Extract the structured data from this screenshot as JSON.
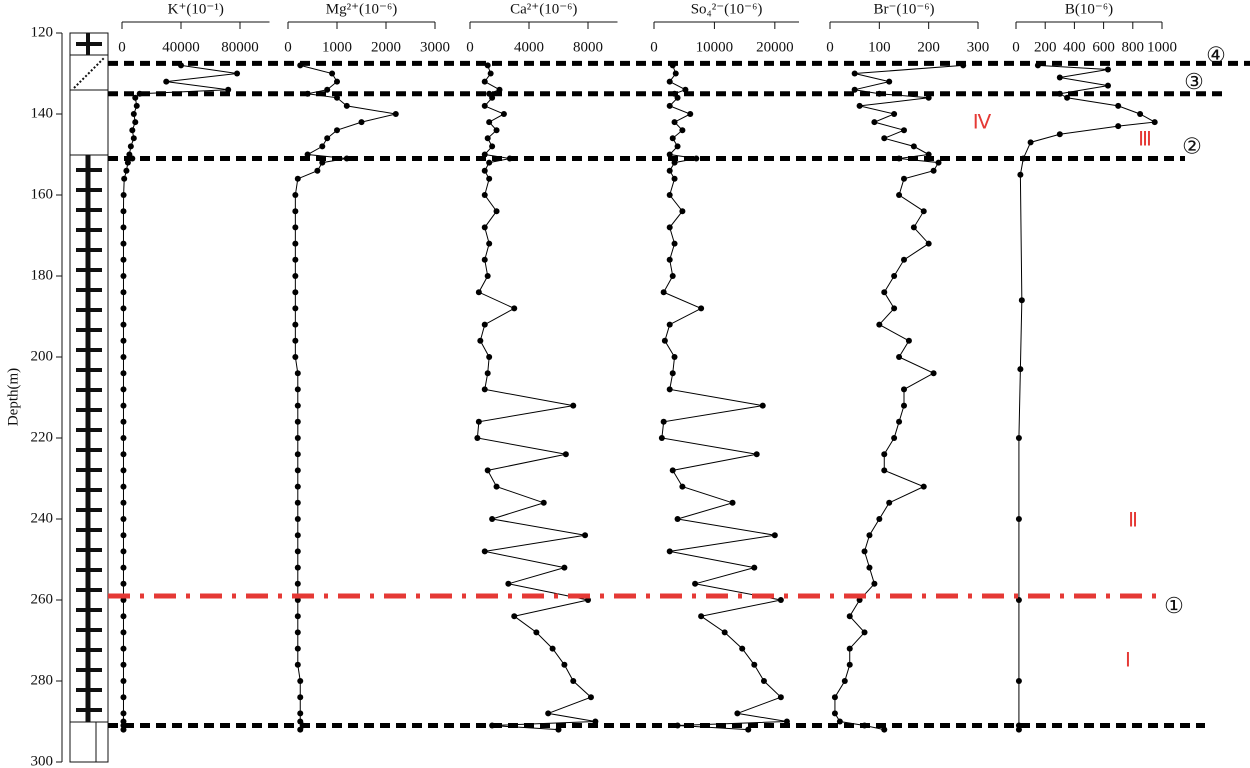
{
  "depth_axis": {
    "label": "Depth(m)",
    "ylim": [
      120,
      300
    ],
    "yticks": [
      120,
      140,
      160,
      180,
      200,
      220,
      240,
      260,
      280,
      300
    ],
    "depths": [
      128,
      130,
      132,
      134,
      135,
      136,
      138,
      140,
      142,
      144,
      146,
      148,
      150,
      151,
      152,
      154,
      156,
      160,
      164,
      168,
      172,
      176,
      180,
      184,
      188,
      192,
      196,
      200,
      204,
      208,
      212,
      216,
      220,
      224,
      228,
      232,
      236,
      240,
      244,
      248,
      252,
      256,
      260,
      264,
      268,
      272,
      276,
      280,
      284,
      288,
      290,
      291,
      292
    ]
  },
  "boundaries": [
    {
      "depth": 127.5,
      "label": "④",
      "color": "#000000"
    },
    {
      "depth": 135,
      "label": "③",
      "color": "#000000"
    },
    {
      "depth": 151,
      "label": "②",
      "color": "#000000"
    },
    {
      "depth": 259,
      "label": "①",
      "color": "#e53935"
    },
    {
      "depth": 291,
      "color": "#000000"
    }
  ],
  "zones": [
    "Ⅳ",
    "Ⅲ",
    "Ⅱ",
    "Ⅰ"
  ],
  "chart_data": [
    {
      "type": "line",
      "title": "K⁺(10⁻¹)",
      "color": "#000000",
      "xlim": [
        0,
        100000
      ],
      "xticks": [
        0,
        40000,
        80000
      ],
      "values": [
        40000,
        78000,
        30000,
        72000,
        12000,
        9000,
        10000,
        8000,
        9000,
        7000,
        8000,
        6000,
        5000,
        7000,
        4000,
        3000,
        1500,
        1100,
        1000,
        1000,
        1000,
        1000,
        1000,
        1000,
        1000,
        1000,
        1000,
        1000,
        1000,
        1000,
        1000,
        1000,
        1000,
        1000,
        1000,
        1000,
        1000,
        1000,
        1000,
        1000,
        1000,
        1000,
        1000,
        1000,
        1000,
        1000,
        1000,
        1000,
        1000,
        1000,
        1000,
        1000,
        1000
      ]
    },
    {
      "type": "line",
      "title": "Mg²⁺(10⁻⁶)",
      "color": "#000000",
      "xlim": [
        0,
        3000
      ],
      "xticks": [
        0,
        1000,
        2000,
        3000
      ],
      "values": [
        250,
        900,
        1000,
        800,
        400,
        1000,
        1200,
        2200,
        1500,
        1000,
        800,
        700,
        400,
        1200,
        700,
        600,
        200,
        150,
        150,
        150,
        150,
        150,
        150,
        150,
        150,
        150,
        150,
        150,
        200,
        200,
        200,
        200,
        200,
        200,
        200,
        200,
        200,
        200,
        200,
        200,
        200,
        200,
        200,
        200,
        200,
        200,
        200,
        250,
        250,
        250,
        250,
        300,
        250
      ]
    },
    {
      "type": "line",
      "title": "Ca²⁺(10⁻⁶)",
      "color": "#000000",
      "xlim": [
        0,
        10000
      ],
      "xticks": [
        0,
        4000,
        8000
      ],
      "values": [
        1200,
        1400,
        1000,
        2000,
        1300,
        1500,
        1000,
        2300,
        1300,
        1800,
        1200,
        1500,
        1000,
        2700,
        1300,
        1000,
        1300,
        1000,
        1800,
        1000,
        1300,
        1000,
        1200,
        600,
        3000,
        1000,
        700,
        1300,
        1200,
        1000,
        7000,
        600,
        500,
        6500,
        1200,
        1800,
        5000,
        1500,
        7800,
        1000,
        6400,
        2600,
        8000,
        3000,
        4500,
        5600,
        6400,
        7000,
        8200,
        5300,
        8500,
        1500,
        6000
      ]
    },
    {
      "type": "line",
      "title": "So₄²⁻(10⁻⁶)",
      "color": "#000000",
      "xlim": [
        0,
        24000
      ],
      "xticks": [
        0,
        10000,
        20000
      ],
      "values": [
        3100,
        3600,
        2600,
        5200,
        3400,
        3900,
        2600,
        6000,
        3400,
        4700,
        3100,
        3900,
        2600,
        7000,
        3400,
        2600,
        3400,
        2600,
        4700,
        2600,
        3400,
        2600,
        3100,
        1600,
        7800,
        2600,
        1800,
        3400,
        3100,
        2600,
        18000,
        1600,
        1300,
        17000,
        3100,
        4700,
        13000,
        3900,
        20000,
        2600,
        16600,
        6800,
        21000,
        7800,
        11700,
        14600,
        16600,
        18200,
        21000,
        13800,
        22000,
        3900,
        15600
      ]
    },
    {
      "type": "line",
      "title": "Br⁻(10⁻⁶)",
      "color": "#000000",
      "xlim": [
        0,
        300
      ],
      "xticks": [
        0,
        100,
        200,
        300
      ],
      "values": [
        270,
        50,
        120,
        50,
        100,
        200,
        60,
        130,
        90,
        150,
        110,
        170,
        200,
        140,
        220,
        210,
        150,
        140,
        190,
        170,
        200,
        150,
        130,
        110,
        130,
        100,
        160,
        140,
        210,
        150,
        150,
        140,
        130,
        110,
        110,
        190,
        120,
        100,
        80,
        70,
        80,
        90,
        60,
        40,
        70,
        40,
        40,
        30,
        10,
        10,
        20,
        70,
        110
      ]
    },
    {
      "type": "line",
      "title": "B(10⁻⁶)",
      "color": "#000000",
      "xlim": [
        0,
        1000
      ],
      "xticks": [
        0,
        200,
        400,
        600,
        800,
        1000
      ],
      "depths": [
        128,
        129,
        131,
        133,
        135,
        136,
        138,
        140,
        142,
        143,
        145,
        147,
        151,
        155,
        186,
        203,
        220,
        240,
        260,
        280,
        291,
        292
      ],
      "values": [
        150,
        630,
        300,
        630,
        300,
        350,
        700,
        850,
        950,
        700,
        300,
        100,
        50,
        30,
        40,
        30,
        20,
        20,
        20,
        20,
        20,
        20
      ]
    }
  ]
}
